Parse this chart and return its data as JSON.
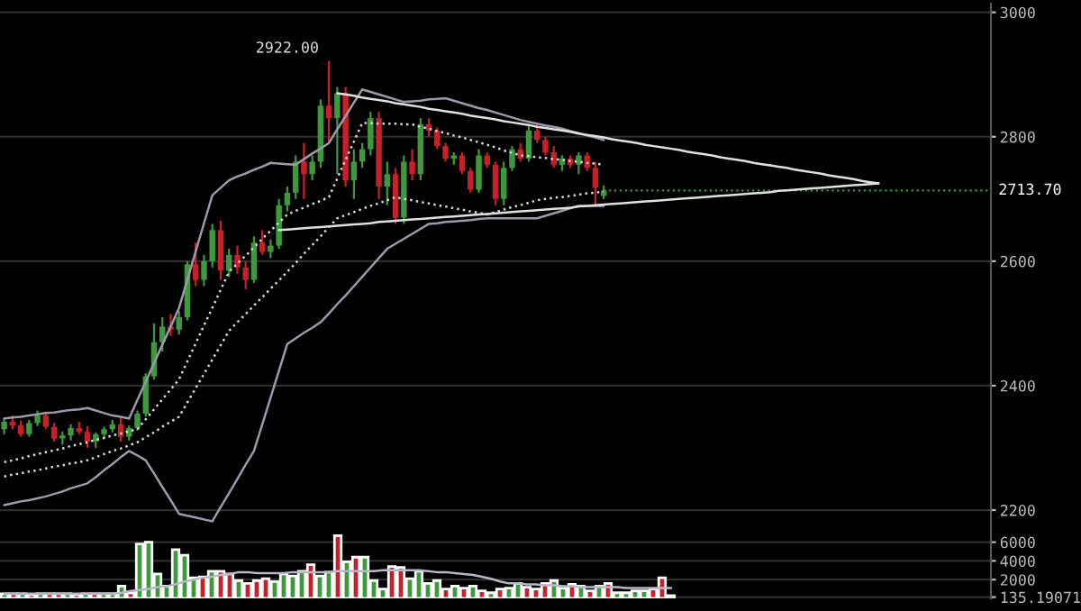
{
  "chart_data": [
    {
      "type": "candlestick",
      "categories": [
        null,
        null,
        null,
        null,
        null,
        null,
        null,
        null,
        null,
        null,
        null,
        null,
        null,
        null,
        null,
        null,
        null,
        null,
        null,
        null,
        null,
        null,
        null,
        null,
        null,
        null,
        null,
        null,
        null,
        null,
        null,
        null,
        null,
        null,
        null,
        null,
        null,
        null,
        null,
        null,
        null,
        null,
        null,
        null,
        null,
        null,
        null,
        null,
        null,
        null,
        null,
        null,
        null,
        null,
        null,
        null,
        null,
        null,
        null,
        null,
        null,
        null,
        null,
        null,
        null,
        null,
        null,
        null,
        null,
        null,
        null,
        null,
        null,
        null,
        null,
        null,
        null,
        null,
        null,
        null,
        null,
        null,
        null,
        null,
        null,
        null,
        null,
        null,
        null,
        null,
        null,
        null,
        null,
        null,
        null,
        null,
        null,
        null,
        null,
        null,
        null,
        null,
        null,
        null,
        null,
        null,
        null,
        null,
        null,
        null,
        null,
        null,
        null,
        null,
        null,
        null,
        null,
        null,
        null
      ],
      "ohlc": [
        [
          2330,
          2348,
          2322,
          2342
        ],
        [
          2342,
          2352,
          2330,
          2336
        ],
        [
          2336,
          2344,
          2318,
          2322
        ],
        [
          2322,
          2345,
          2318,
          2340
        ],
        [
          2340,
          2360,
          2335,
          2352
        ],
        [
          2352,
          2356,
          2330,
          2334
        ],
        [
          2334,
          2340,
          2310,
          2315
        ],
        [
          2315,
          2326,
          2305,
          2320
        ],
        [
          2320,
          2338,
          2312,
          2332
        ],
        [
          2332,
          2342,
          2322,
          2326
        ],
        [
          2326,
          2335,
          2300,
          2310
        ],
        [
          2310,
          2325,
          2300,
          2322
        ],
        [
          2322,
          2334,
          2315,
          2330
        ],
        [
          2330,
          2345,
          2325,
          2338
        ],
        [
          2338,
          2350,
          2310,
          2318
        ],
        [
          2318,
          2336,
          2312,
          2332
        ],
        [
          2332,
          2360,
          2328,
          2355
        ],
        [
          2355,
          2420,
          2350,
          2415
        ],
        [
          2415,
          2500,
          2410,
          2470
        ],
        [
          2470,
          2510,
          2455,
          2495
        ],
        [
          2495,
          2515,
          2480,
          2490
        ],
        [
          2490,
          2520,
          2482,
          2510
        ],
        [
          2510,
          2600,
          2505,
          2595
        ],
        [
          2595,
          2630,
          2560,
          2570
        ],
        [
          2570,
          2610,
          2560,
          2600
        ],
        [
          2600,
          2660,
          2590,
          2650
        ],
        [
          2650,
          2665,
          2570,
          2585
        ],
        [
          2585,
          2620,
          2575,
          2610
        ],
        [
          2610,
          2625,
          2580,
          2590
        ],
        [
          2590,
          2600,
          2555,
          2570
        ],
        [
          2570,
          2640,
          2565,
          2630
        ],
        [
          2630,
          2650,
          2610,
          2615
        ],
        [
          2615,
          2635,
          2605,
          2625
        ],
        [
          2625,
          2700,
          2620,
          2690
        ],
        [
          2690,
          2720,
          2680,
          2710
        ],
        [
          2710,
          2770,
          2700,
          2760
        ],
        [
          2760,
          2790,
          2700,
          2740
        ],
        [
          2740,
          2770,
          2730,
          2760
        ],
        [
          2760,
          2860,
          2750,
          2850
        ],
        [
          2850,
          2922,
          2790,
          2830
        ],
        [
          2830,
          2880,
          2740,
          2870
        ],
        [
          2870,
          2880,
          2720,
          2730
        ],
        [
          2730,
          2780,
          2700,
          2760
        ],
        [
          2760,
          2790,
          2750,
          2780
        ],
        [
          2780,
          2840,
          2770,
          2830
        ],
        [
          2830,
          2840,
          2700,
          2720
        ],
        [
          2720,
          2760,
          2690,
          2740
        ],
        [
          2740,
          2750,
          2660,
          2670
        ],
        [
          2670,
          2770,
          2660,
          2760
        ],
        [
          2760,
          2780,
          2730,
          2740
        ],
        [
          2740,
          2830,
          2730,
          2820
        ],
        [
          2820,
          2830,
          2800,
          2810
        ],
        [
          2810,
          2815,
          2780,
          2785
        ],
        [
          2785,
          2790,
          2760,
          2765
        ],
        [
          2765,
          2775,
          2755,
          2770
        ],
        [
          2770,
          2775,
          2740,
          2745
        ],
        [
          2745,
          2750,
          2710,
          2715
        ],
        [
          2715,
          2780,
          2710,
          2770
        ],
        [
          2770,
          2775,
          2750,
          2755
        ],
        [
          2755,
          2760,
          2690,
          2700
        ],
        [
          2700,
          2760,
          2690,
          2750
        ],
        [
          2750,
          2785,
          2745,
          2780
        ],
        [
          2780,
          2790,
          2760,
          2765
        ],
        [
          2765,
          2820,
          2760,
          2810
        ],
        [
          2810,
          2820,
          2790,
          2795
        ],
        [
          2795,
          2800,
          2770,
          2775
        ],
        [
          2775,
          2785,
          2750,
          2755
        ],
        [
          2755,
          2770,
          2745,
          2765
        ],
        [
          2765,
          2770,
          2750,
          2755
        ],
        [
          2755,
          2775,
          2740,
          2770
        ],
        [
          2770,
          2775,
          2745,
          2750
        ],
        [
          2750,
          2760,
          2690,
          2718
        ],
        [
          2705,
          2722,
          2700,
          2713.7
        ],
        null,
        null,
        null,
        null,
        null,
        null,
        null,
        null,
        null,
        null,
        null,
        null,
        null,
        null,
        null,
        null,
        null,
        null,
        null,
        null,
        null,
        null,
        null,
        null,
        null,
        null,
        null,
        null,
        null,
        null,
        null,
        null,
        null,
        null,
        null,
        null,
        null,
        null,
        null,
        null,
        null,
        null,
        null,
        null,
        null,
        null
      ],
      "colors": [
        "#3c9a3c",
        "#c8202a",
        "#c8202a",
        "#3c9a3c",
        "#3c9a3c",
        "#c8202a",
        "#c8202a",
        "#3c9a3c",
        "#3c9a3c",
        "#c8202a",
        "#c8202a",
        "#3c9a3c",
        "#3c9a3c",
        "#3c9a3c",
        "#c8202a",
        "#3c9a3c",
        "#3c9a3c",
        "#3c9a3c",
        "#3c9a3c",
        "#3c9a3c",
        "#c8202a",
        "#3c9a3c",
        "#3c9a3c",
        "#c8202a",
        "#3c9a3c",
        "#3c9a3c",
        "#c8202a",
        "#3c9a3c",
        "#c8202a",
        "#c8202a",
        "#3c9a3c",
        "#c8202a",
        "#3c9a3c",
        "#3c9a3c",
        "#3c9a3c",
        "#3c9a3c",
        "#c8202a",
        "#3c9a3c",
        "#3c9a3c",
        "#c8202a",
        "#3c9a3c",
        "#c8202a",
        "#3c9a3c",
        "#3c9a3c",
        "#3c9a3c",
        "#c8202a",
        "#3c9a3c",
        "#c8202a",
        "#3c9a3c",
        "#c8202a",
        "#3c9a3c",
        "#c8202a",
        "#c8202a",
        "#c8202a",
        "#3c9a3c",
        "#c8202a",
        "#c8202a",
        "#3c9a3c",
        "#c8202a",
        "#c8202a",
        "#3c9a3c",
        "#3c9a3c",
        "#c8202a",
        "#3c9a3c",
        "#c8202a",
        "#c8202a",
        "#c8202a",
        "#3c9a3c",
        "#c8202a",
        "#3c9a3c",
        "#c8202a",
        "#c8202a",
        "#3c9a3c",
        null,
        null,
        null,
        null,
        null,
        null,
        null,
        null,
        null,
        null,
        null,
        null,
        null,
        null,
        null,
        null,
        null,
        null,
        null,
        null,
        null,
        null,
        null,
        null,
        null,
        null,
        null,
        null,
        null,
        null,
        null,
        null,
        null,
        null,
        null,
        null,
        null,
        null,
        null,
        null,
        null,
        null,
        null,
        null,
        null,
        null
      ],
      "series": [
        {
          "type": "line",
          "color": "#9a9aa8",
          "line_style": "solid",
          "values": [
            2347,
            2349,
            2350,
            2352,
            2354,
            2356,
            2357,
            2359,
            2361,
            2362,
            2364,
            2360,
            2356,
            2352,
            2350,
            2347,
            2377,
            2406,
            2436,
            2466,
            2495,
            2525,
            2570,
            2616,
            2661,
            2706,
            2718,
            2730,
            2736,
            2741,
            2747,
            2752,
            2758,
            2757,
            2756,
            2755,
            2764,
            2773,
            2781,
            2790,
            2812,
            2833,
            2855,
            2876,
            2872,
            2868,
            2864,
            2860,
            2856,
            2857,
            2858,
            2860,
            2861,
            2862,
            2858,
            2854,
            2850,
            2846,
            2843,
            2839,
            2835,
            2831,
            2827,
            2824,
            2821,
            2818,
            2816,
            2813,
            2809,
            2806,
            2802,
            2799,
            2795,
            null,
            null,
            null,
            null,
            null,
            null,
            null,
            null,
            null,
            null,
            null,
            null,
            null,
            null,
            null,
            null,
            null,
            null,
            null,
            null,
            null,
            null,
            null,
            null,
            null,
            null,
            null,
            null,
            null,
            null,
            null,
            null,
            null,
            null,
            null,
            null,
            null,
            null,
            null,
            null,
            null,
            null,
            null,
            null,
            null,
            null
          ]
        },
        {
          "type": "line",
          "color": "#9a9aa8",
          "line_style": "solid",
          "values": [
            2208,
            2211,
            2214,
            2216,
            2219,
            2222,
            2226,
            2230,
            2235,
            2239,
            2243,
            2253,
            2264,
            2274,
            2285,
            2295,
            2288,
            2280,
            2259,
            2237,
            2216,
            2194,
            2191,
            2188,
            2185,
            2182,
            2205,
            2227,
            2250,
            2273,
            2295,
            2338,
            2381,
            2424,
            2467,
            2476,
            2485,
            2493,
            2502,
            2516,
            2531,
            2545,
            2560,
            2575,
            2590,
            2605,
            2620,
            2628,
            2636,
            2644,
            2652,
            2660,
            2661,
            2663,
            2664,
            2665,
            2666,
            2668,
            2669,
            2669,
            2669,
            2669,
            2669,
            2669,
            2669,
            2673,
            2677,
            2681,
            2685,
            2689,
            2689,
            2689,
            2689,
            null,
            null,
            null,
            null,
            null,
            null,
            null,
            null,
            null,
            null,
            null,
            null,
            null,
            null,
            null,
            null,
            null,
            null,
            null,
            null,
            null,
            null,
            null,
            null,
            null,
            null,
            null,
            null,
            null,
            null,
            null,
            null,
            null,
            null,
            null,
            null,
            null,
            null,
            null,
            null,
            null,
            null,
            null,
            null,
            null,
            null
          ]
        },
        {
          "type": "line",
          "color": "#d8d8d8",
          "line_style": "dotted",
          "values": [
            2277,
            2280,
            2283,
            2287,
            2290,
            2293,
            2296,
            2299,
            2303,
            2306,
            2309,
            2313,
            2316,
            2320,
            2323,
            2327,
            2330,
            2346,
            2362,
            2378,
            2394,
            2410,
            2439,
            2468,
            2497,
            2525,
            2554,
            2583,
            2596,
            2609,
            2622,
            2636,
            2649,
            2662,
            2675,
            2681,
            2686,
            2692,
            2697,
            2703,
            2733,
            2763,
            2792,
            2822,
            2822,
            2821,
            2821,
            2821,
            2820,
            2820,
            2816,
            2813,
            2809,
            2806,
            2802,
            2799,
            2795,
            2791,
            2787,
            2783,
            2778,
            2774,
            2770,
            2769,
            2767,
            2766,
            2764,
            2763,
            2761,
            2760,
            2758,
            2757,
            2755,
            null,
            null,
            null,
            null,
            null,
            null,
            null,
            null,
            null,
            null,
            null,
            null,
            null,
            null,
            null,
            null,
            null,
            null,
            null,
            null,
            null,
            null,
            null,
            null,
            null,
            null,
            null,
            null,
            null,
            null,
            null,
            null,
            null,
            null,
            null,
            null,
            null,
            null,
            null,
            null,
            null,
            null,
            null,
            null,
            null,
            null
          ]
        },
        {
          "type": "line",
          "color": "#d8d8d8",
          "line_style": "dotted",
          "values": [
            2254,
            2257,
            2259,
            2262,
            2264,
            2267,
            2270,
            2272,
            2275,
            2277,
            2280,
            2285,
            2290,
            2295,
            2299,
            2304,
            2309,
            2317,
            2325,
            2334,
            2342,
            2350,
            2373,
            2396,
            2419,
            2442,
            2465,
            2488,
            2502,
            2515,
            2529,
            2542,
            2556,
            2569,
            2583,
            2597,
            2612,
            2626,
            2640,
            2655,
            2669,
            2674,
            2679,
            2684,
            2689,
            2693,
            2698,
            2703,
            2700,
            2698,
            2695,
            2693,
            2690,
            2688,
            2685,
            2683,
            2680,
            2678,
            2675,
            2679,
            2683,
            2687,
            2690,
            2694,
            2698,
            2700,
            2702,
            2703,
            2705,
            2707,
            2709,
            2710,
            2712,
            null,
            null,
            null,
            null,
            null,
            null,
            null,
            null,
            null,
            null,
            null,
            null,
            null,
            null,
            null,
            null,
            null,
            null,
            null,
            null,
            null,
            null,
            null,
            null,
            null,
            null,
            null,
            null,
            null,
            null,
            null,
            null,
            null,
            null,
            null,
            null,
            null,
            null,
            null,
            null,
            null,
            null,
            null,
            null,
            null,
            null
          ]
        },
        {
          "type": "line",
          "color": "#e0e0e0",
          "line_style": "solid",
          "values": [
            null,
            null,
            null,
            null,
            null,
            null,
            null,
            null,
            null,
            null,
            null,
            null,
            null,
            null,
            null,
            null,
            null,
            null,
            null,
            null,
            null,
            null,
            null,
            null,
            null,
            null,
            null,
            null,
            null,
            null,
            null,
            null,
            null,
            null,
            null,
            null,
            null,
            null,
            null,
            null,
            2870,
            2868,
            2866,
            2863,
            2861,
            2859,
            2857,
            2854,
            2852,
            2850,
            2848,
            2845,
            2843,
            2841,
            2839,
            2837,
            2834,
            2832,
            2830,
            2828,
            2825,
            2823,
            2821,
            2819,
            2816,
            2814,
            2812,
            2810,
            2808,
            2805,
            2803,
            2801,
            2799,
            2796,
            2794,
            2792,
            2790,
            2787,
            2785,
            2783,
            2781,
            2779,
            2776,
            2774,
            2772,
            2770,
            2767,
            2765,
            2763,
            2761,
            2758,
            2756,
            2754,
            2752,
            2750,
            2747,
            2745,
            2743,
            2741,
            2738,
            2736,
            2734,
            2732,
            2729,
            2727,
            2725,
            null,
            null,
            null,
            null,
            null,
            null,
            null,
            null,
            null,
            null,
            null,
            null,
            null
          ]
        },
        {
          "type": "line",
          "color": "#e0e0e0",
          "line_style": "solid",
          "values": [
            null,
            null,
            null,
            null,
            null,
            null,
            null,
            null,
            null,
            null,
            null,
            null,
            null,
            null,
            null,
            null,
            null,
            null,
            null,
            null,
            null,
            null,
            null,
            null,
            null,
            null,
            null,
            null,
            null,
            null,
            null,
            null,
            null,
            2650,
            2651,
            2652,
            2653,
            2654,
            2655,
            2656,
            2657,
            2658,
            2659,
            2660,
            2661,
            2663,
            2664,
            2665,
            2666,
            2667,
            2668,
            2669,
            2670,
            2671,
            2672,
            2673,
            2674,
            2675,
            2676,
            2677,
            2678,
            2679,
            2680,
            2681,
            2682,
            2683,
            2684,
            2685,
            2686,
            2688,
            2689,
            2690,
            2691,
            2692,
            2693,
            2694,
            2695,
            2696,
            2697,
            2698,
            2699,
            2700,
            2701,
            2702,
            2703,
            2704,
            2705,
            2706,
            2707,
            2708,
            2709,
            2710,
            2711,
            2713,
            2714,
            2715,
            2716,
            2717,
            2718,
            2719,
            2720,
            2721,
            2722,
            2723,
            2724,
            2725,
            null,
            null,
            null,
            null,
            null,
            null,
            null,
            null,
            null,
            null,
            null,
            null,
            null
          ]
        }
      ],
      "ref_lines": [
        {
          "axis": "y",
          "value": 2713.7,
          "label": "2713.70",
          "color": "#3c9a3c",
          "line_style": "dotted"
        }
      ],
      "annotations": [
        "2922.00"
      ],
      "ylim": [
        2174,
        3014
      ],
      "yticks": [
        2200,
        2400,
        2600,
        2800,
        3000
      ],
      "grid": "y",
      "tick_labels": "y"
    },
    {
      "type": "bar",
      "categories": [
        null,
        null,
        null,
        null,
        null,
        null,
        null,
        null,
        null,
        null,
        null,
        null,
        null,
        null,
        null,
        null,
        null,
        null,
        null,
        null,
        null,
        null,
        null,
        null,
        null,
        null,
        null,
        null,
        null,
        null,
        null,
        null,
        null,
        null,
        null,
        null,
        null,
        null,
        null,
        null,
        null,
        null,
        null,
        null,
        null,
        null,
        null,
        null,
        null,
        null,
        null,
        null,
        null,
        null,
        null,
        null,
        null,
        null,
        null,
        null,
        null,
        null,
        null,
        null,
        null,
        null,
        null,
        null,
        null,
        null,
        null,
        null,
        null,
        null,
        null,
        null,
        null,
        null,
        null,
        null,
        null,
        null,
        null,
        null,
        null,
        null,
        null,
        null,
        null,
        null,
        null,
        null,
        null,
        null,
        null,
        null,
        null,
        null,
        null,
        null,
        null,
        null,
        null,
        null,
        null,
        null,
        null,
        null,
        null,
        null
      ],
      "values": [
        500,
        500,
        500,
        400,
        500,
        500,
        500,
        500,
        400,
        500,
        500,
        500,
        500,
        1300,
        600,
        5800,
        6000,
        2600,
        1300,
        5200,
        4600,
        2200,
        2300,
        2900,
        2900,
        2600,
        1900,
        1600,
        1900,
        2100,
        1800,
        2600,
        2400,
        2900,
        3600,
        2400,
        2800,
        6700,
        3900,
        4400,
        4400,
        1900,
        1000,
        3400,
        3300,
        2100,
        2900,
        1600,
        1900,
        1000,
        1300,
        1100,
        1300,
        800,
        600,
        1000,
        1100,
        1600,
        1200,
        1000,
        1600,
        1900,
        1100,
        1500,
        1300,
        800,
        1300,
        1600,
        600,
        600,
        800,
        800,
        1000,
        2200,
        300,
        null,
        null,
        null,
        null,
        null,
        null,
        null,
        null,
        null,
        null,
        null,
        null,
        null,
        null,
        null,
        null,
        null,
        null,
        null,
        null,
        null,
        null,
        null,
        null,
        null,
        null,
        null,
        null,
        null,
        null,
        null,
        null,
        null,
        null,
        null
      ],
      "colors": [
        "#3c9a3c",
        "#c8202a",
        "#3c9a3c",
        "#c8202a",
        "#3c9a3c",
        "#c8202a",
        "#c8202a",
        "#3c9a3c",
        "#c8202a",
        "#3c9a3c",
        "#c8202a",
        "#3c9a3c",
        "#3c9a3c",
        "#3c9a3c",
        "#c8202a",
        "#3c9a3c",
        "#3c9a3c",
        "#3c9a3c",
        "#3c9a3c",
        "#3c9a3c",
        "#3c9a3c",
        "#3c9a3c",
        "#c8202a",
        "#3c9a3c",
        "#c8202a",
        "#c8202a",
        "#3c9a3c",
        "#c8202a",
        "#c8202a",
        "#c8202a",
        "#3c9a3c",
        "#3c9a3c",
        "#3c9a3c",
        "#3c9a3c",
        "#c8202a",
        "#3c9a3c",
        "#3c9a3c",
        "#c8202a",
        "#3c9a3c",
        "#c8202a",
        "#3c9a3c",
        "#3c9a3c",
        "#3c9a3c",
        "#c8202a",
        "#c8202a",
        "#3c9a3c",
        "#3c9a3c",
        "#3c9a3c",
        "#3c9a3c",
        "#c8202a",
        "#3c9a3c",
        "#c8202a",
        "#3c9a3c",
        "#c8202a",
        "#3c9a3c",
        "#c8202a",
        "#3c9a3c",
        "#3c9a3c",
        "#c8202a",
        "#c8202a",
        "#c8202a",
        "#3c9a3c",
        "#3c9a3c",
        "#c8202a",
        "#3c9a3c",
        "#c8202a",
        "#3c9a3c",
        "#c8202a",
        "#3c9a3c",
        "#3c9a3c",
        "#3c9a3c",
        "#3c9a3c",
        "#c8202a",
        "#c8202a",
        "#3c9a3c",
        null,
        null,
        null,
        null,
        null,
        null,
        null,
        null,
        null,
        null,
        null,
        null,
        null,
        null,
        null,
        null,
        null,
        null,
        null,
        null,
        null,
        null,
        null,
        null,
        null,
        null,
        null,
        null,
        null,
        null,
        null,
        null,
        null,
        null,
        null
      ],
      "series": [
        {
          "type": "line",
          "color": "#b8b8c8",
          "line_style": "solid",
          "values": [
            500,
            500,
            500,
            500,
            500,
            500,
            500,
            500,
            500,
            500,
            500,
            500,
            500,
            600,
            800,
            900,
            1000,
            1200,
            1300,
            1500,
            1800,
            2000,
            2200,
            2300,
            2500,
            2600,
            2800,
            2800,
            2700,
            2700,
            2700,
            2700,
            2800,
            2800,
            2800,
            2800,
            2800,
            2900,
            2900,
            2900,
            2900,
            2900,
            3000,
            3000,
            3000,
            3000,
            3000,
            2900,
            2800,
            2800,
            2700,
            2600,
            2500,
            2300,
            2100,
            1800,
            1600,
            1600,
            1500,
            1500,
            1400,
            1400,
            1300,
            1300,
            1200,
            1200,
            1200,
            1200,
            1200,
            1100,
            1100,
            1100,
            1100,
            1100,
            1100,
            null,
            null,
            null,
            null,
            null,
            null,
            null,
            null,
            null,
            null,
            null,
            null,
            null,
            null,
            null,
            null,
            null,
            null,
            null,
            null,
            null,
            null,
            null,
            null,
            null,
            null,
            null,
            null,
            null,
            null,
            null,
            null,
            null,
            null,
            null
          ]
        }
      ],
      "ylim": [
        0,
        7500
      ],
      "yticks": [
        {
          "value": 135.19071,
          "label": "135.19071"
        },
        2000,
        4000,
        6000
      ],
      "grid": "y",
      "tick_labels": "y"
    }
  ]
}
